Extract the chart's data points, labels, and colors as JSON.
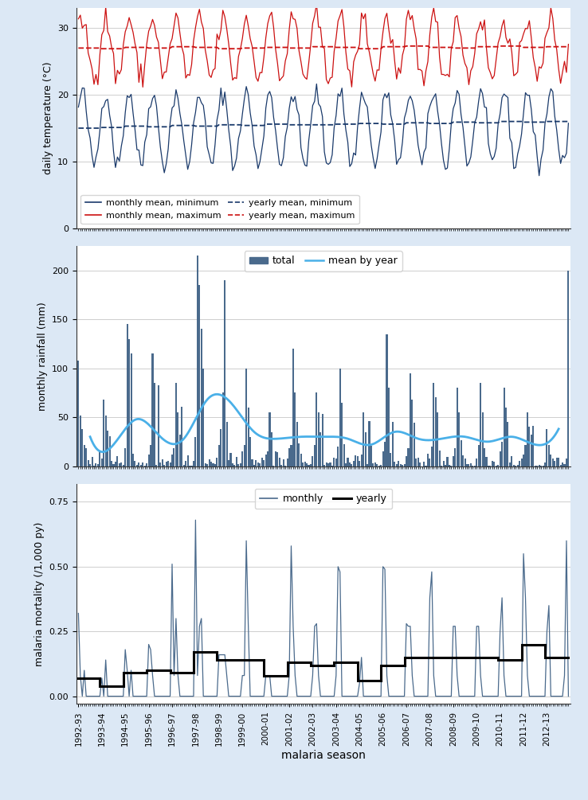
{
  "panel1": {
    "ylabel": "daily temperature (°C)",
    "ylim": [
      0,
      33
    ],
    "yticks": [
      0,
      10,
      20,
      30
    ],
    "line_color_min": "#1a3a6b",
    "line_color_max": "#cc1111",
    "bg_color": "#ffffff"
  },
  "panel2": {
    "ylabel": "monthly rainfall (mm)",
    "ylim": [
      0,
      225
    ],
    "yticks": [
      0,
      50,
      100,
      150,
      200
    ],
    "bar_color": "#4a6a8c",
    "line_color": "#4ab0e8",
    "bg_color": "#ffffff"
  },
  "panel3": {
    "ylabel": "malaria mortality (/1,000 py)",
    "ylim": [
      -0.03,
      0.82
    ],
    "yticks": [
      0.0,
      0.25,
      0.5,
      0.75
    ],
    "line_color_monthly": "#4a6a8c",
    "line_color_yearly": "#000000",
    "bg_color": "#ffffff"
  },
  "xlabel": "malaria season",
  "n_months": 252,
  "n_years": 21,
  "outer_bg": "#e8eef5",
  "fig_bg": "#dce8f5"
}
